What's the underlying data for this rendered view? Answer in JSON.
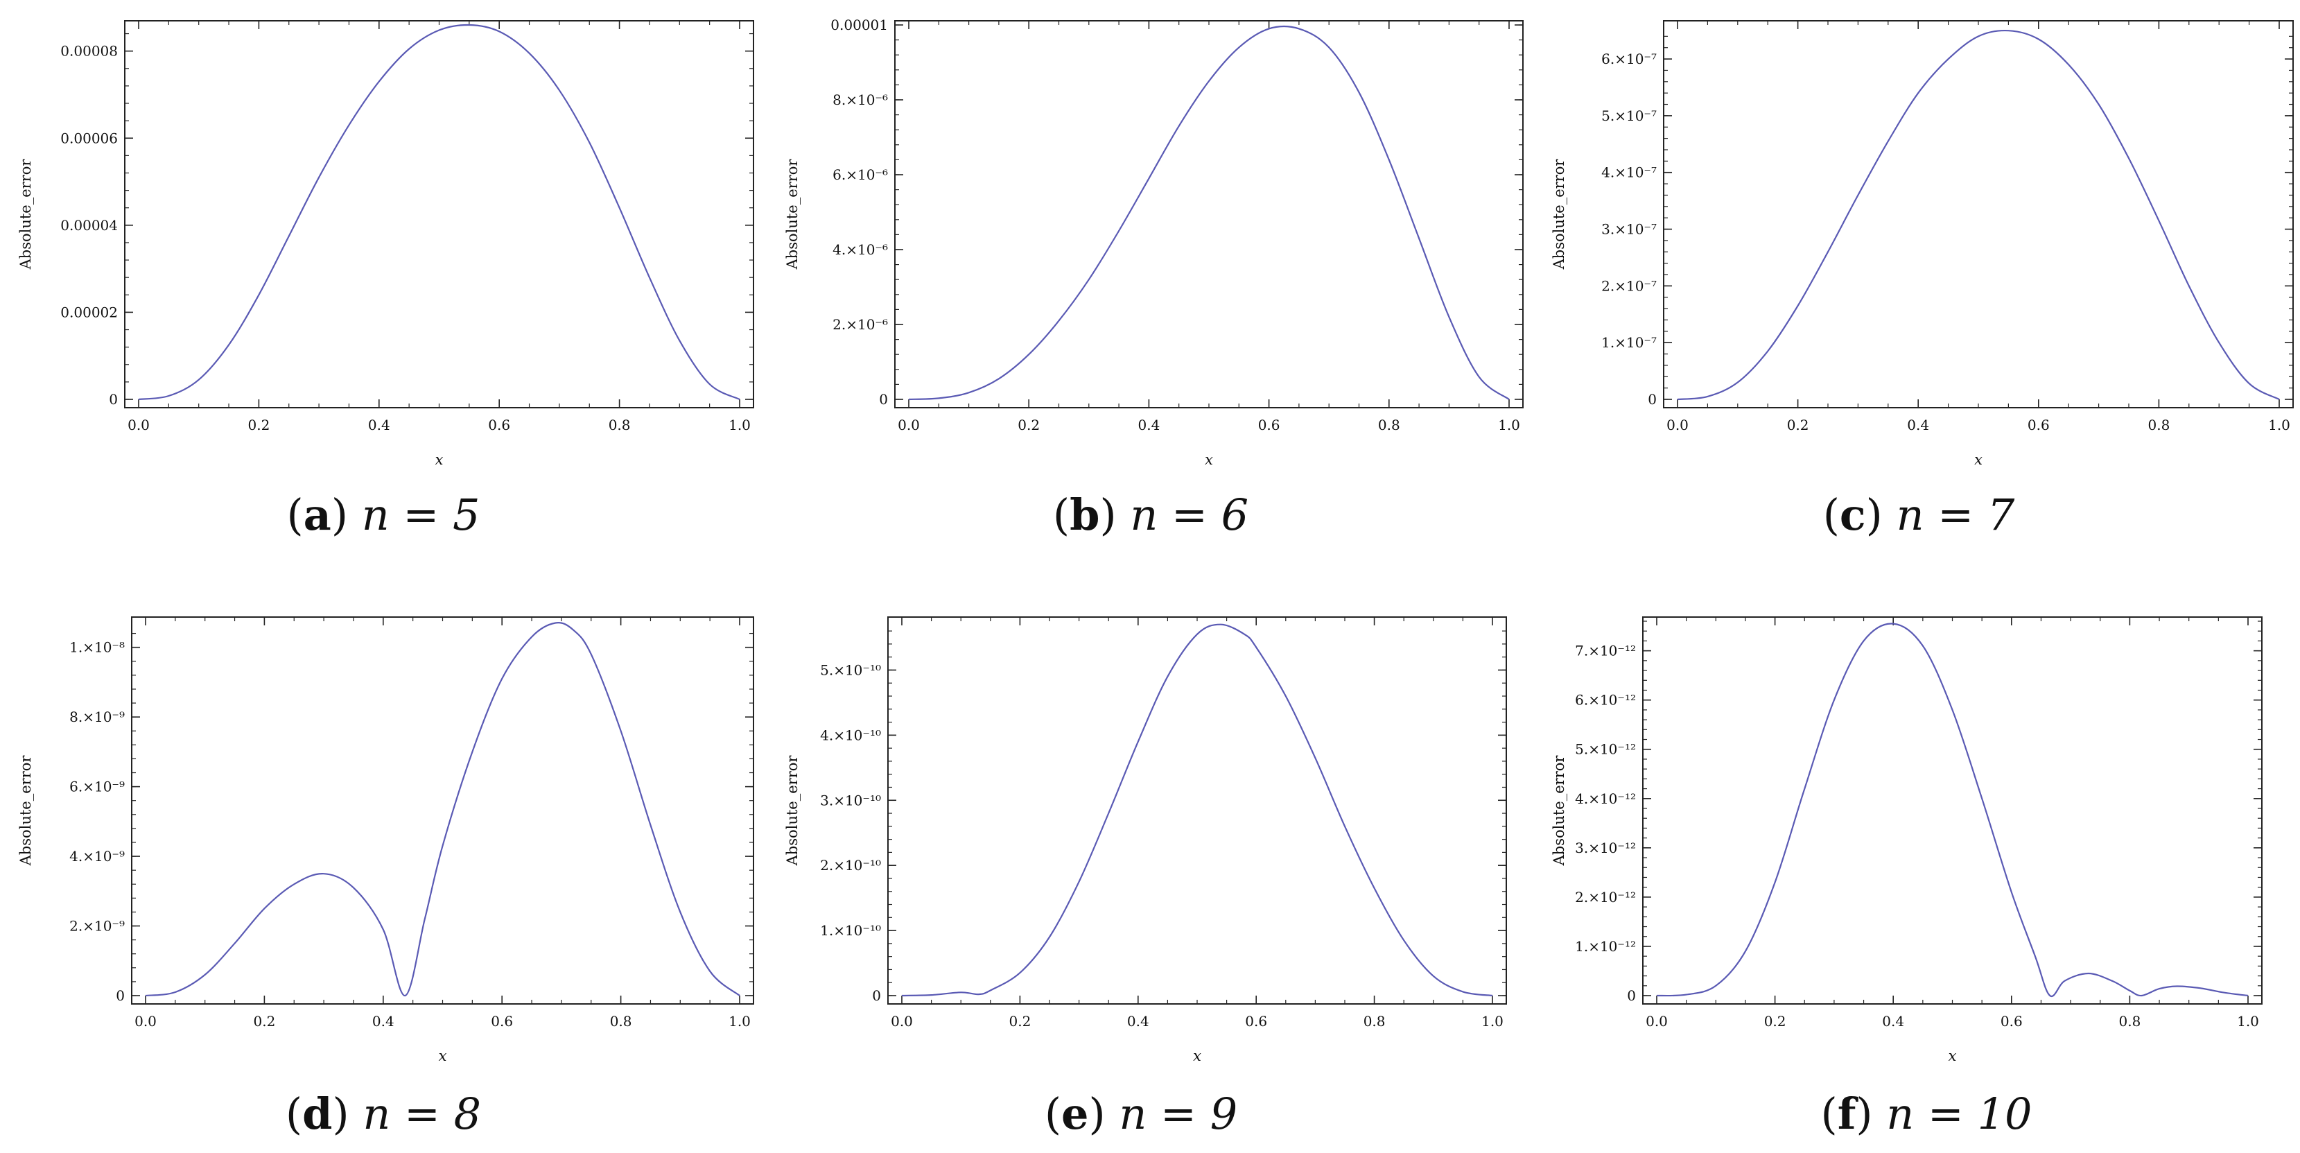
{
  "chart_data": [
    {
      "id": "a",
      "type": "line",
      "caption": {
        "letter": "a",
        "text": "n = 5"
      },
      "xlabel": "x",
      "ylabel": "Absolute_error",
      "xlim": [
        0,
        1
      ],
      "ylim": [
        0,
        8.6e-05
      ],
      "xticks": [
        "0.0",
        "0.2",
        "0.4",
        "0.6",
        "0.8",
        "1.0"
      ],
      "yticks": [
        {
          "value": 0,
          "label": "0"
        },
        {
          "value": 2e-05,
          "label": "0.00002"
        },
        {
          "value": 4e-05,
          "label": "0.00004"
        },
        {
          "value": 6e-05,
          "label": "0.00006"
        },
        {
          "value": 8e-05,
          "label": "0.00008"
        }
      ],
      "x": [
        0,
        0.05,
        0.1,
        0.15,
        0.2,
        0.25,
        0.3,
        0.35,
        0.4,
        0.45,
        0.5,
        0.55,
        0.6,
        0.65,
        0.7,
        0.75,
        0.8,
        0.85,
        0.9,
        0.95,
        1.0
      ],
      "y": [
        0,
        8e-07,
        4.5e-06,
        1.25e-05,
        2.4e-05,
        3.75e-05,
        5.1e-05,
        6.3e-05,
        7.3e-05,
        8.05e-05,
        8.48e-05,
        8.6e-05,
        8.45e-05,
        7.95e-05,
        7.1e-05,
        5.9e-05,
        4.4e-05,
        2.8e-05,
        1.35e-05,
        3.5e-06,
        0
      ]
    },
    {
      "id": "b",
      "type": "line",
      "caption": {
        "letter": "b",
        "text": "n = 6"
      },
      "xlabel": "x",
      "ylabel": "Absolute_error",
      "xlim": [
        0,
        1
      ],
      "ylim": [
        0,
        1e-05
      ],
      "xticks": [
        "0.0",
        "0.2",
        "0.4",
        "0.6",
        "0.8",
        "1.0"
      ],
      "yticks": [
        {
          "value": 0,
          "label": "0"
        },
        {
          "value": 2e-06,
          "label": "2.×10⁻⁶"
        },
        {
          "value": 4e-06,
          "label": "4.×10⁻⁶"
        },
        {
          "value": 6e-06,
          "label": "6.×10⁻⁶"
        },
        {
          "value": 8e-06,
          "label": "8.×10⁻⁶"
        },
        {
          "value": 1e-05,
          "label": "0.00001"
        }
      ],
      "x": [
        0,
        0.05,
        0.1,
        0.15,
        0.2,
        0.25,
        0.3,
        0.35,
        0.4,
        0.45,
        0.5,
        0.55,
        0.6,
        0.65,
        0.7,
        0.75,
        0.8,
        0.85,
        0.9,
        0.95,
        1.0
      ],
      "y": [
        0,
        3e-08,
        1.8e-07,
        5.5e-07,
        1.2e-06,
        2.1e-06,
        3.2e-06,
        4.5e-06,
        5.9e-06,
        7.3e-06,
        8.5e-06,
        9.4e-06,
        9.9e-06,
        9.9e-06,
        9.4e-06,
        8.2e-06,
        6.4e-06,
        4.3e-06,
        2.2e-06,
        6e-07,
        0
      ]
    },
    {
      "id": "c",
      "type": "line",
      "caption": {
        "letter": "c",
        "text": "n = 7"
      },
      "xlabel": "x",
      "ylabel": "Absolute_error",
      "xlim": [
        0,
        1
      ],
      "ylim": [
        0,
        6.6e-07
      ],
      "xticks": [
        "0.0",
        "0.2",
        "0.4",
        "0.6",
        "0.8",
        "1.0"
      ],
      "yticks": [
        {
          "value": 0,
          "label": "0"
        },
        {
          "value": 1e-07,
          "label": "1.×10⁻⁷"
        },
        {
          "value": 2e-07,
          "label": "2.×10⁻⁷"
        },
        {
          "value": 3e-07,
          "label": "3.×10⁻⁷"
        },
        {
          "value": 4e-07,
          "label": "4.×10⁻⁷"
        },
        {
          "value": 5e-07,
          "label": "5.×10⁻⁷"
        },
        {
          "value": 6e-07,
          "label": "6.×10⁻⁷"
        }
      ],
      "x": [
        0,
        0.05,
        0.1,
        0.15,
        0.2,
        0.25,
        0.3,
        0.35,
        0.4,
        0.45,
        0.5,
        0.55,
        0.6,
        0.65,
        0.7,
        0.75,
        0.8,
        0.85,
        0.9,
        0.95,
        1.0
      ],
      "y": [
        0,
        5e-09,
        3e-08,
        8.5e-08,
        1.65e-07,
        2.6e-07,
        3.6e-07,
        4.55e-07,
        5.4e-07,
        6e-07,
        6.4e-07,
        6.5e-07,
        6.35e-07,
        5.9e-07,
        5.2e-07,
        4.25e-07,
        3.15e-07,
        2e-07,
        1e-07,
        2.8e-08,
        0
      ]
    },
    {
      "id": "d",
      "type": "line",
      "caption": {
        "letter": "d",
        "text": "n = 8"
      },
      "xlabel": "x",
      "ylabel": "Absolute_error",
      "xlim": [
        0,
        1
      ],
      "ylim": [
        0,
        1.075e-08
      ],
      "xticks": [
        "0.0",
        "0.2",
        "0.4",
        "0.6",
        "0.8",
        "1.0"
      ],
      "yticks": [
        {
          "value": 0,
          "label": "0"
        },
        {
          "value": 2e-09,
          "label": "2.×10⁻⁹"
        },
        {
          "value": 4e-09,
          "label": "4.×10⁻⁹"
        },
        {
          "value": 6e-09,
          "label": "6.×10⁻⁹"
        },
        {
          "value": 8e-09,
          "label": "8.×10⁻⁹"
        },
        {
          "value": 1e-08,
          "label": "1.×10⁻⁸"
        }
      ],
      "x": [
        0,
        0.05,
        0.1,
        0.15,
        0.2,
        0.25,
        0.3,
        0.35,
        0.4,
        0.437,
        0.47,
        0.5,
        0.55,
        0.6,
        0.65,
        0.69,
        0.72,
        0.75,
        0.8,
        0.85,
        0.9,
        0.95,
        1.0
      ],
      "y": [
        0,
        1e-10,
        6e-10,
        1.5e-09,
        2.5e-09,
        3.2e-09,
        3.5e-09,
        3.1e-09,
        1.9e-09,
        0,
        2.2e-09,
        4.3e-09,
        7e-09,
        9.1e-09,
        1.03e-08,
        1.07e-08,
        1.05e-08,
        9.8e-09,
        7.6e-09,
        4.9e-09,
        2.4e-09,
        7e-10,
        0
      ]
    },
    {
      "id": "e",
      "type": "line",
      "caption": {
        "letter": "e",
        "text": "n = 9"
      },
      "xlabel": "x",
      "ylabel": "Absolute_error",
      "xlim": [
        0,
        1
      ],
      "ylim": [
        0,
        5.75e-10
      ],
      "xticks": [
        "0.0",
        "0.2",
        "0.4",
        "0.6",
        "0.8",
        "1.0"
      ],
      "yticks": [
        {
          "value": 0,
          "label": "0"
        },
        {
          "value": 1e-10,
          "label": "1.×10⁻¹⁰"
        },
        {
          "value": 2e-10,
          "label": "2.×10⁻¹⁰"
        },
        {
          "value": 3e-10,
          "label": "3.×10⁻¹⁰"
        },
        {
          "value": 4e-10,
          "label": "4.×10⁻¹⁰"
        },
        {
          "value": 5e-10,
          "label": "5.×10⁻¹⁰"
        }
      ],
      "x": [
        0,
        0.05,
        0.1,
        0.13,
        0.15,
        0.2,
        0.25,
        0.3,
        0.35,
        0.4,
        0.45,
        0.5,
        0.54,
        0.58,
        0.6,
        0.65,
        0.7,
        0.75,
        0.8,
        0.85,
        0.9,
        0.95,
        1.0
      ],
      "y": [
        0,
        1e-12,
        5e-12,
        2e-12,
        8e-12,
        3.5e-11,
        9e-11,
        1.75e-10,
        2.8e-10,
        3.9e-10,
        4.9e-10,
        5.55e-10,
        5.7e-10,
        5.55e-10,
        5.35e-10,
        4.6e-10,
        3.65e-10,
        2.6e-10,
        1.65e-10,
        8.5e-11,
        3e-11,
        6e-12,
        0
      ]
    },
    {
      "id": "f",
      "type": "line",
      "caption": {
        "letter": "f",
        "text": "n = 10"
      },
      "xlabel": "x",
      "ylabel": "Absolute_error",
      "xlim": [
        0,
        1
      ],
      "ylim": [
        0,
        7.6e-12
      ],
      "xticks": [
        "0.0",
        "0.2",
        "0.4",
        "0.6",
        "0.8",
        "1.0"
      ],
      "yticks": [
        {
          "value": 0,
          "label": "0"
        },
        {
          "value": 1e-12,
          "label": "1.×10⁻¹²"
        },
        {
          "value": 2e-12,
          "label": "2.×10⁻¹²"
        },
        {
          "value": 3e-12,
          "label": "3.×10⁻¹²"
        },
        {
          "value": 4e-12,
          "label": "4.×10⁻¹²"
        },
        {
          "value": 5e-12,
          "label": "5.×10⁻¹²"
        },
        {
          "value": 6e-12,
          "label": "6.×10⁻¹²"
        },
        {
          "value": 7e-12,
          "label": "7.×10⁻¹²"
        }
      ],
      "x": [
        0,
        0.05,
        0.1,
        0.15,
        0.2,
        0.25,
        0.3,
        0.35,
        0.4,
        0.45,
        0.5,
        0.55,
        0.6,
        0.64,
        0.665,
        0.69,
        0.73,
        0.77,
        0.8,
        0.82,
        0.85,
        0.88,
        0.92,
        0.96,
        1.0
      ],
      "y": [
        0,
        2e-14,
        2e-13,
        9e-13,
        2.3e-12,
        4.2e-12,
        6e-12,
        7.2e-12,
        7.55e-12,
        7.1e-12,
        5.8e-12,
        4e-12,
        2.1e-12,
        8e-13,
        0,
        3e-13,
        4.5e-13,
        3e-13,
        1e-13,
        0,
        1.4e-13,
        1.9e-13,
        1.5e-13,
        6e-14,
        0
      ]
    }
  ]
}
